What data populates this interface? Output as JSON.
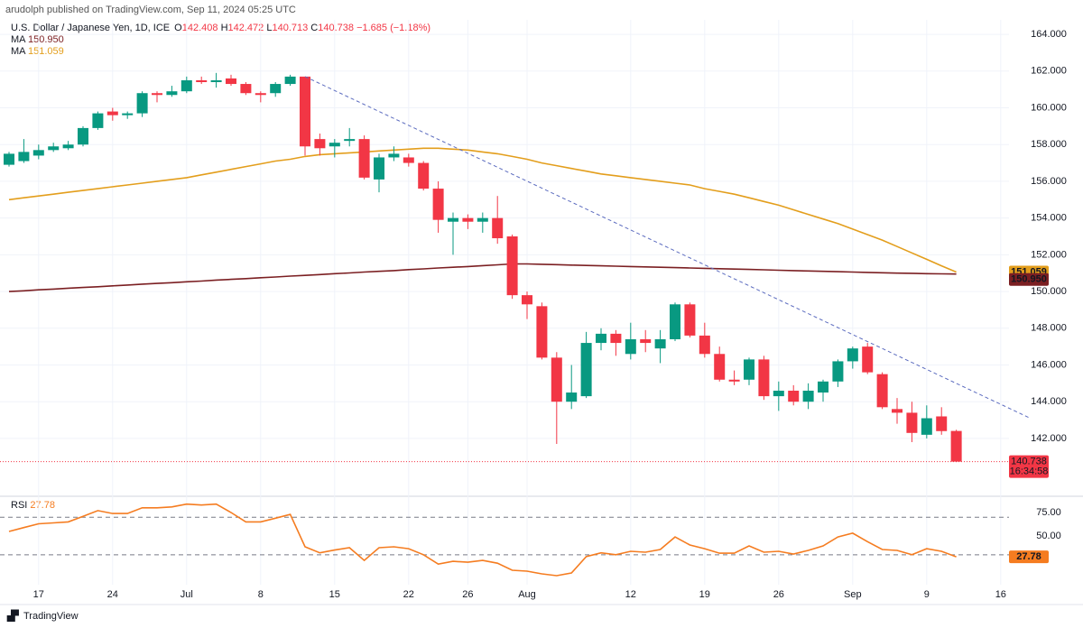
{
  "header": {
    "published": "arudolph published on TradingView.com, Sep 11, 2024 05:25 UTC",
    "brand": "TradingView"
  },
  "chart_data": [
    {
      "type": "candlestick",
      "title": "U.S. Dollar / Japanese Yen, 1D, ICE",
      "ohlc_labels": [
        "O",
        "H",
        "L",
        "C"
      ],
      "change": "−1.685 (−1.18%)",
      "up_color": "#089981",
      "down_color": "#f23645",
      "open": [
        156.9,
        157.1,
        157.4,
        157.7,
        157.8,
        158.0,
        158.9,
        159.8,
        159.6,
        159.7,
        160.8,
        160.7,
        160.9,
        161.5,
        161.4,
        161.6,
        161.3,
        160.8,
        160.8,
        161.3,
        161.7,
        158.3,
        157.9,
        158.2,
        158.3,
        156.1,
        157.3,
        157.3,
        157.0,
        155.6,
        153.8,
        154.0,
        153.8,
        154.0,
        153.0,
        149.8,
        149.2,
        146.4,
        144.0,
        144.3,
        147.2,
        147.7,
        146.6,
        147.4,
        146.9,
        147.4,
        149.3,
        147.6,
        146.6,
        145.2,
        145.2,
        146.3,
        144.3,
        144.6,
        144.0,
        144.5,
        145.1,
        146.2,
        147.0,
        145.5,
        143.6,
        143.4,
        142.2,
        143.2,
        142.408
      ],
      "high": [
        157.6,
        158.3,
        158.0,
        158.1,
        158.2,
        159.0,
        159.8,
        160.0,
        159.8,
        160.9,
        160.9,
        161.2,
        161.7,
        161.7,
        161.9,
        161.8,
        161.4,
        160.9,
        161.4,
        161.8,
        161.7,
        158.6,
        158.3,
        158.9,
        158.5,
        157.5,
        157.9,
        157.5,
        157.1,
        156.0,
        154.3,
        154.2,
        154.3,
        155.2,
        153.1,
        150.0,
        149.4,
        146.7,
        146.0,
        147.8,
        148.0,
        147.9,
        148.3,
        147.9,
        147.9,
        149.4,
        149.4,
        148.3,
        147.0,
        145.7,
        146.4,
        146.5,
        145.1,
        144.9,
        145.0,
        145.2,
        146.3,
        147.0,
        147.2,
        145.6,
        144.2,
        144.0,
        143.8,
        143.7,
        142.472
      ],
      "low": [
        156.8,
        157.0,
        157.2,
        157.6,
        157.7,
        157.9,
        158.8,
        159.3,
        159.4,
        159.5,
        160.3,
        160.6,
        160.8,
        161.3,
        161.1,
        161.2,
        160.7,
        160.3,
        160.6,
        161.2,
        157.4,
        157.4,
        157.3,
        157.9,
        156.1,
        155.4,
        157.1,
        156.8,
        155.5,
        153.2,
        152.0,
        153.4,
        153.2,
        152.6,
        149.6,
        148.5,
        146.3,
        141.7,
        143.6,
        144.2,
        146.8,
        146.5,
        146.3,
        146.7,
        146.1,
        147.3,
        147.5,
        146.4,
        145.1,
        144.9,
        144.9,
        144.1,
        143.5,
        143.8,
        143.6,
        144.0,
        144.8,
        145.8,
        145.5,
        143.6,
        142.8,
        141.8,
        142.0,
        142.2,
        140.713
      ],
      "close": [
        157.5,
        157.6,
        157.7,
        157.9,
        158.0,
        158.9,
        159.7,
        159.6,
        159.7,
        160.8,
        160.7,
        160.9,
        161.5,
        161.4,
        161.5,
        161.3,
        160.8,
        160.7,
        161.3,
        161.7,
        157.9,
        157.8,
        158.1,
        158.3,
        156.2,
        157.3,
        157.5,
        157.0,
        155.6,
        153.9,
        154.0,
        153.8,
        154.0,
        152.9,
        149.8,
        149.3,
        146.4,
        144.0,
        144.5,
        147.2,
        147.7,
        147.2,
        147.4,
        147.2,
        147.4,
        149.3,
        147.6,
        146.6,
        145.2,
        145.1,
        146.3,
        144.3,
        144.6,
        144.0,
        144.6,
        145.1,
        146.2,
        146.9,
        145.6,
        143.7,
        143.4,
        142.3,
        143.1,
        142.4,
        140.738
      ],
      "series": [
        {
          "name": "MA",
          "color": "#7b1f22",
          "values": [
            150.0,
            150.04,
            150.09,
            150.13,
            150.18,
            150.22,
            150.26,
            150.31,
            150.35,
            150.4,
            150.44,
            150.48,
            150.53,
            150.57,
            150.62,
            150.66,
            150.7,
            150.75,
            150.79,
            150.84,
            150.88,
            150.92,
            150.97,
            151.01,
            151.06,
            151.1,
            151.14,
            151.19,
            151.23,
            151.28,
            151.32,
            151.36,
            151.41,
            151.45,
            151.5,
            151.5,
            151.48,
            151.46,
            151.44,
            151.42,
            151.4,
            151.38,
            151.36,
            151.34,
            151.32,
            151.3,
            151.28,
            151.26,
            151.24,
            151.22,
            151.2,
            151.18,
            151.16,
            151.14,
            151.12,
            151.1,
            151.08,
            151.06,
            151.04,
            151.02,
            151.0,
            150.99,
            150.97,
            150.96,
            150.95
          ],
          "value_labels": [
            null,
            null,
            null,
            null,
            null,
            null,
            null,
            null,
            null,
            null,
            null,
            null,
            null,
            null,
            null,
            null,
            null,
            null,
            null,
            null,
            null,
            null,
            null,
            null,
            null,
            null,
            null,
            null,
            null,
            null,
            null,
            null,
            null,
            null,
            null,
            null,
            null,
            null,
            null,
            null,
            null,
            null,
            null,
            null,
            null,
            null,
            null,
            null,
            null,
            null,
            null,
            null,
            null,
            null,
            null,
            null,
            null,
            null,
            null,
            null,
            null,
            null,
            null,
            null,
            "150.950"
          ]
        },
        {
          "name": "MA",
          "color": "#e39e1c",
          "values": [
            155.0,
            155.1,
            155.2,
            155.3,
            155.4,
            155.5,
            155.6,
            155.7,
            155.8,
            155.9,
            156.0,
            156.1,
            156.2,
            156.35,
            156.5,
            156.65,
            156.8,
            156.95,
            157.1,
            157.2,
            157.35,
            157.45,
            157.5,
            157.55,
            157.6,
            157.65,
            157.7,
            157.75,
            157.8,
            157.8,
            157.75,
            157.7,
            157.6,
            157.5,
            157.35,
            157.2,
            157.0,
            156.85,
            156.7,
            156.55,
            156.4,
            156.3,
            156.2,
            156.1,
            156.0,
            155.9,
            155.8,
            155.6,
            155.45,
            155.3,
            155.1,
            154.9,
            154.7,
            154.45,
            154.2,
            153.95,
            153.7,
            153.4,
            153.1,
            152.8,
            152.45,
            152.1,
            151.75,
            151.4,
            151.059
          ]
        }
      ],
      "trendline": {
        "color": "#5b6bbf",
        "x": [
          20,
          69
        ],
        "y": [
          161.7,
          143.1
        ]
      },
      "countdown": "16:34:58",
      "xlim": [
        -0.61,
        67.56
      ],
      "xticks": [
        {
          "value": 2,
          "label": "17"
        },
        {
          "value": 7,
          "label": "24"
        },
        {
          "value": 12,
          "label": "Jul"
        },
        {
          "value": 17,
          "label": "8"
        },
        {
          "value": 22,
          "label": "15"
        },
        {
          "value": 27,
          "label": "22"
        },
        {
          "value": 31,
          "label": "26"
        },
        {
          "value": 35,
          "label": "Aug"
        },
        {
          "value": 42,
          "label": "12"
        },
        {
          "value": 47,
          "label": "19"
        },
        {
          "value": 52,
          "label": "26"
        },
        {
          "value": 57,
          "label": "Sep"
        },
        {
          "value": 62,
          "label": "9"
        },
        {
          "value": 67,
          "label": "16"
        }
      ],
      "ylim": [
        138.95,
        164.79
      ],
      "yticks": [
        {
          "value": 142,
          "label": "142.000"
        },
        {
          "value": 144,
          "label": "144.000"
        },
        {
          "value": 146,
          "label": "146.000"
        },
        {
          "value": 148,
          "label": "148.000"
        },
        {
          "value": 150,
          "label": "150.000"
        },
        {
          "value": 152,
          "label": "152.000"
        },
        {
          "value": 154,
          "label": "154.000"
        },
        {
          "value": 156,
          "label": "156.000"
        },
        {
          "value": 158,
          "label": "158.000"
        },
        {
          "value": 160,
          "label": "160.000"
        },
        {
          "value": 162,
          "label": "162.000"
        },
        {
          "value": 164,
          "label": "164.000"
        }
      ],
      "grid": true
    },
    {
      "type": "line",
      "title": "RSI",
      "series": [
        {
          "name": "RSI",
          "color": "#f57c20",
          "values": [
            54.8,
            59,
            63,
            64,
            65,
            71,
            77,
            74,
            74,
            80,
            80,
            81,
            84,
            83,
            84,
            75,
            65,
            65,
            69,
            73,
            38.5,
            32,
            35,
            37.5,
            24,
            37.5,
            38.5,
            36.5,
            30,
            20,
            23,
            22,
            24,
            21,
            13.5,
            12.5,
            9.6,
            7.7,
            10.6,
            28,
            32,
            30,
            33.7,
            32.7,
            35.6,
            49,
            40.4,
            36.5,
            31.7,
            31.7,
            39.4,
            32.7,
            33.7,
            30.8,
            34.6,
            39.4,
            49,
            53,
            44,
            35.6,
            34.6,
            30,
            36.5,
            33.7,
            27.78
          ]
        }
      ],
      "levels": [
        70,
        30
      ],
      "ylim": [
        -1.9,
        90.4
      ],
      "yticks": [
        {
          "value": 75,
          "label": "75.00"
        },
        {
          "value": 50,
          "label": "50.00"
        }
      ]
    }
  ]
}
